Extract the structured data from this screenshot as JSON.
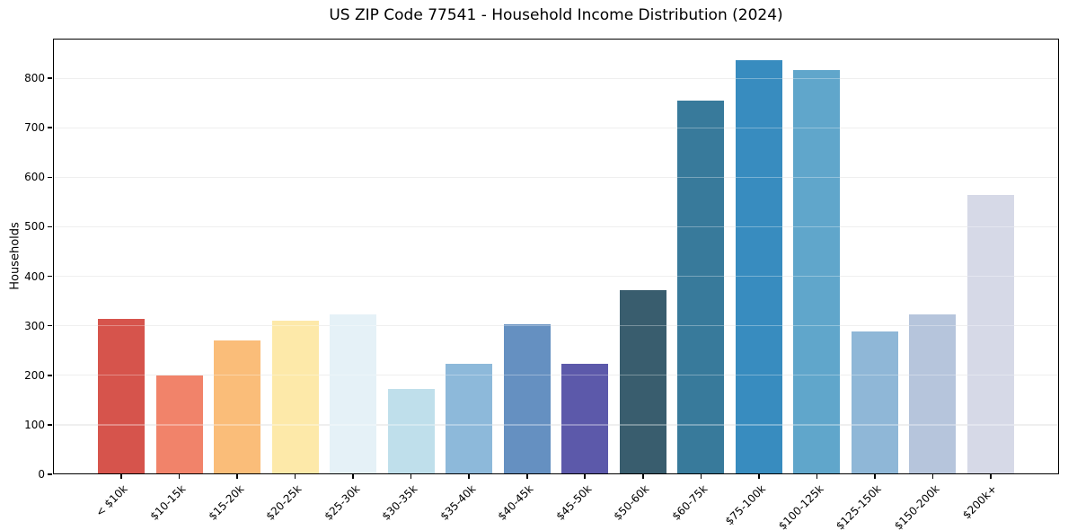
{
  "header": {
    "title": "US ZIP Code 77541 - Household Income Distribution (2024)"
  },
  "chart_data": {
    "type": "bar",
    "title": "US ZIP Code 77541 - Household Income Distribution (2024)",
    "xlabel": "",
    "ylabel": "Households",
    "categories": [
      "< $10k",
      "$10-15k",
      "$15-20k",
      "$20-25k",
      "$25-30k",
      "$30-35k",
      "$35-40k",
      "$40-45k",
      "$45-50k",
      "$50-60k",
      "$60-75k",
      "$75-100k",
      "$100-125k",
      "$125-150k",
      "$150-200k",
      "$200k+"
    ],
    "values": [
      314,
      199,
      270,
      310,
      323,
      172,
      223,
      303,
      223,
      372,
      754,
      836,
      816,
      288,
      323,
      565
    ],
    "bar_colors": [
      "#d6544c",
      "#f1836a",
      "#fabd79",
      "#fde9a9",
      "#e5f1f7",
      "#bfdfeb",
      "#8db9da",
      "#6590c1",
      "#5c59aa",
      "#395d6e",
      "#387a9b",
      "#388cbf",
      "#60a6cb",
      "#8fb7d7",
      "#b6c5dc",
      "#d6d9e7"
    ],
    "ylim": [
      0,
      880
    ],
    "yticks": [
      0,
      100,
      200,
      300,
      400,
      500,
      600,
      700,
      800
    ],
    "grid": "horizontal",
    "legend": "none",
    "axis_color": "#000000",
    "grid_color": "#e7e7e7",
    "background_color": "#ffffff"
  }
}
